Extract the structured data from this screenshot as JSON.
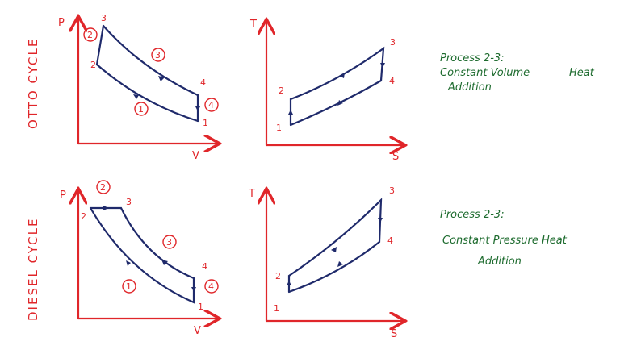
{
  "cycles": [
    {
      "name": "OTTO CYCLE",
      "pv": {
        "y_axis": "P",
        "x_axis": "V",
        "states": [
          "1",
          "2",
          "3",
          "4"
        ],
        "processes": [
          "1",
          "2",
          "3",
          "4"
        ]
      },
      "ts": {
        "y_axis": "T",
        "x_axis": "S",
        "states": [
          "1",
          "2",
          "3",
          "4"
        ]
      },
      "note": {
        "title": "Process 2-3:",
        "lines": [
          "Constant Volume",
          "Heat",
          "Addition"
        ]
      }
    },
    {
      "name": "DIESEL CYCLE",
      "pv": {
        "y_axis": "P",
        "x_axis": "V",
        "states": [
          "1",
          "2",
          "3",
          "4"
        ],
        "processes": [
          "1",
          "2",
          "3",
          "4"
        ]
      },
      "ts": {
        "y_axis": "T",
        "x_axis": "S",
        "states": [
          "1",
          "2",
          "3",
          "4"
        ]
      },
      "note": {
        "title": "Process 2-3:",
        "lines": [
          "Constant Pressure Heat",
          "Addition"
        ]
      }
    }
  ]
}
